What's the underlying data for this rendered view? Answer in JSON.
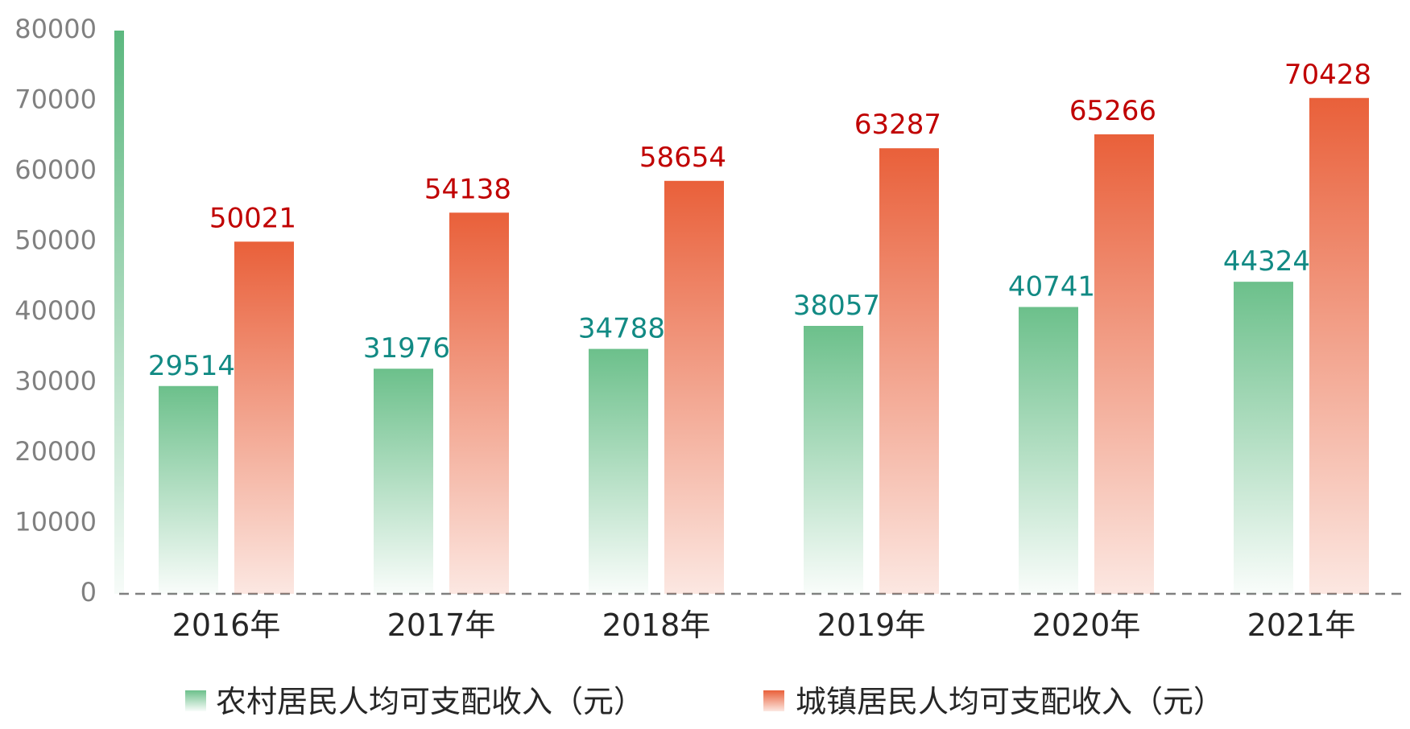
{
  "chart_data": {
    "type": "bar",
    "title": "",
    "xlabel": "",
    "ylabel": "",
    "categories": [
      "2016年",
      "2017年",
      "2018年",
      "2019年",
      "2020年",
      "2021年"
    ],
    "series": [
      {
        "name": "农村居民人均可支配收入（元）",
        "values": [
          29514,
          31976,
          34788,
          38057,
          40741,
          44324
        ],
        "color": "#6cc08b",
        "label_color": "#128a84"
      },
      {
        "name": "城镇居民人均可支配收入（元）",
        "values": [
          50021,
          54138,
          58654,
          63287,
          65266,
          70428
        ],
        "color": "#e9603a",
        "label_color": "#c00000"
      }
    ],
    "ylim": [
      0,
      80000
    ],
    "yticks": [
      0,
      10000,
      20000,
      30000,
      40000,
      50000,
      60000,
      70000,
      80000
    ],
    "grid": false,
    "legend": "bottom",
    "data_labels": true
  }
}
